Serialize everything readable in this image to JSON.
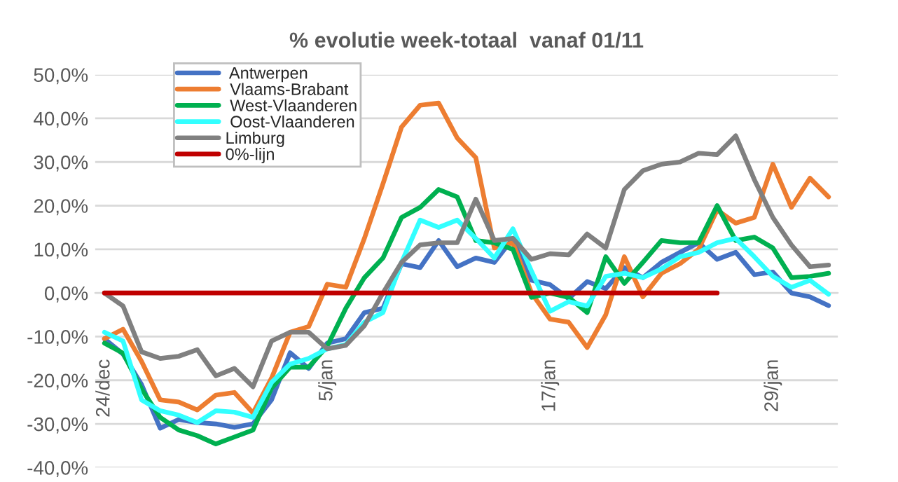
{
  "chart_data": {
    "type": "line",
    "title": "% evolutie week-totaal  vanaf 01/11",
    "categories": [
      "24/dec",
      null,
      null,
      null,
      null,
      null,
      null,
      null,
      null,
      null,
      null,
      null,
      "5/jan",
      null,
      null,
      null,
      null,
      null,
      null,
      null,
      null,
      null,
      null,
      null,
      "17/jan",
      null,
      null,
      null,
      null,
      null,
      null,
      null,
      null,
      null,
      null,
      null,
      "29/jan",
      null,
      null,
      null
    ],
    "series": [
      {
        "name": " Antwerpen",
        "color": "#4472c4",
        "values": [
          -10.5,
          -14,
          -21,
          -31,
          -29,
          -29.7,
          -30,
          -30.8,
          -30,
          -24.5,
          -13.7,
          -17.3,
          -11.5,
          -10.5,
          -4.5,
          -3.5,
          6.7,
          5.8,
          12,
          6,
          8,
          7,
          12.5,
          2.9,
          1.9,
          -1.3,
          2.6,
          1,
          5.8,
          3.5,
          7,
          9.3,
          11.5,
          7.7,
          9.3,
          4.2,
          4.8,
          0,
          -0.9,
          -2.9
        ]
      },
      {
        "name": " Vlaams-Brabant",
        "color": "#ed7d31",
        "values": [
          -10.5,
          -8.3,
          -15.7,
          -24.5,
          -25,
          -26.8,
          -23.4,
          -22.8,
          -27.5,
          -19.5,
          -9,
          -7.7,
          2,
          1.3,
          12.5,
          25,
          38,
          43,
          43.5,
          35.5,
          31,
          10.3,
          11.5,
          0,
          -6,
          -6.7,
          -12.5,
          -5,
          8.3,
          -0.9,
          4.5,
          6.7,
          10,
          19,
          16,
          17.3,
          29.5,
          19.6,
          26.3,
          22
        ]
      },
      {
        "name": " West-Vlaanderen",
        "color": "#00b050",
        "values": [
          -11.5,
          -13.8,
          -22,
          -28.5,
          -31.4,
          -32.7,
          -34.6,
          -33,
          -31.4,
          -21.8,
          -17,
          -17,
          -12.2,
          -3.5,
          3.5,
          8,
          17.3,
          19.6,
          23.7,
          22,
          12,
          11.5,
          10,
          -1,
          0,
          -1,
          -4.5,
          8.3,
          2.2,
          7,
          12,
          11.5,
          11.5,
          20,
          12,
          12.8,
          10.3,
          3.5,
          3.8,
          4.5
        ]
      },
      {
        "name": " Oost-Vlaanderen",
        "color": "#33ffff",
        "values": [
          -9,
          -11,
          -24.5,
          -27,
          -28,
          -29.7,
          -27,
          -27.3,
          -28.5,
          -20.5,
          -16.3,
          -15,
          -12.8,
          -11.8,
          -6.7,
          -4.5,
          7,
          16.7,
          15,
          16.7,
          12.5,
          8,
          14.7,
          5,
          -4.2,
          -2,
          -3,
          3.8,
          4.5,
          3.5,
          5.5,
          8.3,
          9.3,
          11.5,
          12.5,
          8.3,
          3.8,
          1.3,
          2.9,
          -0.3
        ]
      },
      {
        "name": "Limburg",
        "color": "#808080",
        "values": [
          0,
          -3,
          -13.5,
          -15,
          -14.5,
          -13,
          -19,
          -17.3,
          -21.5,
          -11,
          -9,
          -9,
          -12.8,
          -12,
          -7.5,
          0,
          7,
          11,
          11.5,
          11.5,
          21.5,
          12,
          12.5,
          7.7,
          9,
          8.7,
          13.5,
          10.3,
          23.7,
          28,
          29.5,
          30,
          32,
          31.7,
          36,
          26,
          17.3,
          11,
          6,
          6.4
        ]
      },
      {
        "name": "0%-lijn",
        "color": "#c00000",
        "values": [
          0,
          0,
          0,
          0,
          0,
          0,
          0,
          0,
          0,
          0,
          0,
          0,
          0,
          0,
          0,
          0,
          0,
          0,
          0,
          0,
          0,
          0,
          0,
          0,
          0,
          0,
          0,
          0,
          0,
          0,
          0,
          0,
          0,
          0,
          null,
          null,
          null,
          null,
          null,
          null
        ]
      }
    ],
    "ylim": [
      -40,
      50
    ],
    "yticks": [
      {
        "value": -40,
        "label": "-40,0%"
      },
      {
        "value": -30,
        "label": "-30,0%"
      },
      {
        "value": -20,
        "label": "-20,0%"
      },
      {
        "value": -10,
        "label": "-10,0%"
      },
      {
        "value": 0,
        "label": "0,0%"
      },
      {
        "value": 10,
        "label": "10,0%"
      },
      {
        "value": 20,
        "label": "20,0%"
      },
      {
        "value": 30,
        "label": "30,0%"
      },
      {
        "value": 40,
        "label": "40,0%"
      },
      {
        "value": 50,
        "label": "50,0%"
      }
    ],
    "grid": "y",
    "legend": "top left",
    "marker": "none",
    "line_style": "solid"
  }
}
